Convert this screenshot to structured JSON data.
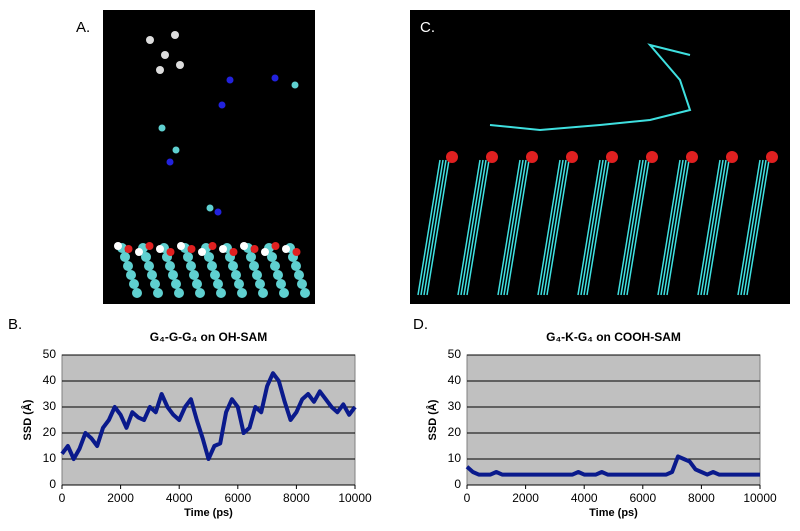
{
  "images": [
    {
      "label": "A."
    },
    {
      "label": "C."
    }
  ],
  "chart_data": [
    {
      "type": "line",
      "panel_label": "B.",
      "title": "G₄-G-G₄ on OH-SAM",
      "x_label": "Time (ps)",
      "y_label": "SSD (Å)",
      "x": [
        0,
        200,
        400,
        600,
        800,
        1000,
        1200,
        1400,
        1600,
        1800,
        2000,
        2200,
        2400,
        2600,
        2800,
        3000,
        3200,
        3400,
        3600,
        3800,
        4000,
        4200,
        4400,
        4600,
        4800,
        5000,
        5200,
        5400,
        5600,
        5800,
        6000,
        6200,
        6400,
        6600,
        6800,
        7000,
        7200,
        7400,
        7600,
        7800,
        8000,
        8200,
        8400,
        8600,
        8800,
        9000,
        9200,
        9400,
        9600,
        9800,
        10000
      ],
      "series": [
        {
          "name": "SSD",
          "color": "#0a1a8c",
          "values": [
            12,
            15,
            10,
            14,
            20,
            18,
            15,
            22,
            25,
            30,
            27,
            22,
            28,
            26,
            25,
            30,
            28,
            35,
            30,
            27,
            25,
            30,
            33,
            25,
            18,
            10,
            15,
            16,
            28,
            33,
            30,
            20,
            22,
            30,
            28,
            38,
            43,
            40,
            32,
            25,
            28,
            33,
            35,
            32,
            36,
            33,
            30,
            28,
            31,
            27,
            30
          ]
        }
      ],
      "xlim": [
        0,
        10000
      ],
      "xticks": [
        0,
        2000,
        4000,
        6000,
        8000,
        10000
      ],
      "ylim": [
        0,
        50
      ],
      "yticks": [
        0,
        10,
        20,
        30,
        40,
        50
      ],
      "grid": true,
      "plot_background": "#c0c0c0"
    },
    {
      "type": "line",
      "panel_label": "D.",
      "title": "G₄-K-G₄ on COOH-SAM",
      "x_label": "Time (ps)",
      "y_label": "SSD (Å)",
      "x": [
        0,
        200,
        400,
        600,
        800,
        1000,
        1200,
        1400,
        1600,
        1800,
        2000,
        2200,
        2400,
        2600,
        2800,
        3000,
        3200,
        3400,
        3600,
        3800,
        4000,
        4200,
        4400,
        4600,
        4800,
        5000,
        5200,
        5400,
        5600,
        5800,
        6000,
        6200,
        6400,
        6600,
        6800,
        7000,
        7200,
        7400,
        7600,
        7800,
        8000,
        8200,
        8400,
        8600,
        8800,
        9000,
        9200,
        9400,
        9600,
        9800,
        10000
      ],
      "series": [
        {
          "name": "SSD",
          "color": "#0a1a8c",
          "values": [
            7,
            5,
            4,
            4,
            4,
            5,
            4,
            4,
            4,
            4,
            4,
            4,
            4,
            4,
            4,
            4,
            4,
            4,
            4,
            5,
            4,
            4,
            4,
            5,
            4,
            4,
            4,
            4,
            4,
            4,
            4,
            4,
            4,
            4,
            4,
            5,
            11,
            10,
            9,
            6,
            5,
            4,
            5,
            4,
            4,
            4,
            4,
            4,
            4,
            4,
            4
          ]
        }
      ],
      "xlim": [
        0,
        10000
      ],
      "xticks": [
        0,
        2000,
        4000,
        6000,
        8000,
        10000
      ],
      "ylim": [
        0,
        50
      ],
      "yticks": [
        0,
        10,
        20,
        30,
        40,
        50
      ],
      "grid": true,
      "plot_background": "#c0c0c0"
    }
  ]
}
